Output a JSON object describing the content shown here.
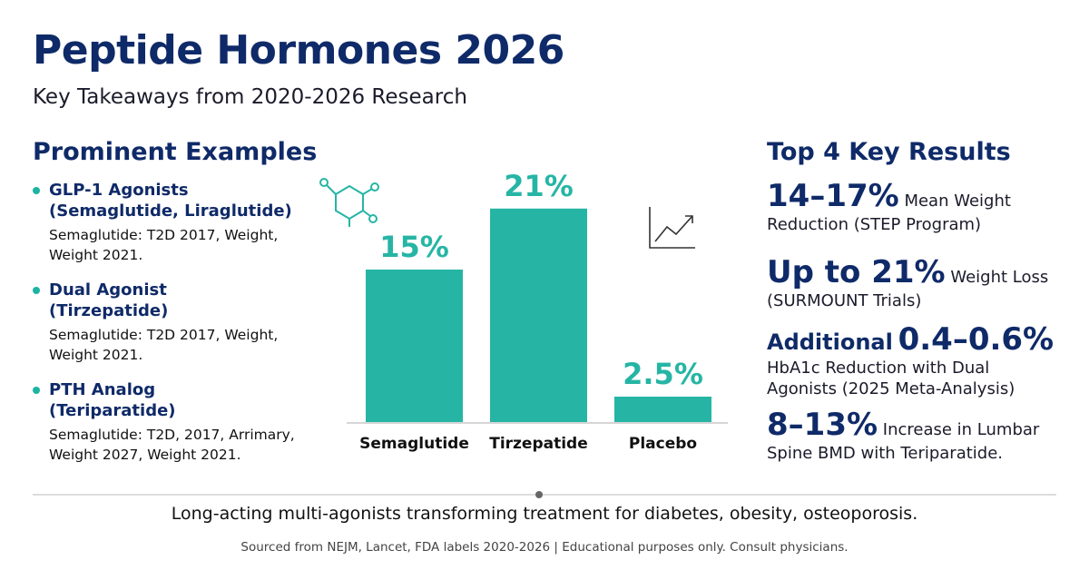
{
  "header": {
    "title": "Peptide Hormones 2026",
    "subtitle": "Key Takeaways from 2020-2026 Research"
  },
  "examples": {
    "heading": "Prominent Examples",
    "items": [
      {
        "name": [
          "GLP-1 Agonists",
          "(Semaglutide, Liraglutide)"
        ],
        "detail": "Semaglutide: T2D 2017, Weight, Weight 2021."
      },
      {
        "name": [
          "Dual Agonist",
          "(Tirzepatide)"
        ],
        "detail": "Semaglutide: T2D 2017, Weight, Weight 2021."
      },
      {
        "name": [
          "PTH Analog",
          "(Teriparatide)"
        ],
        "detail": "Semaglutide: T2D, 2017, Arrimary, Weight 2027, Weight 2021."
      }
    ]
  },
  "chart_data": {
    "type": "bar",
    "categories": [
      "Semaglutide",
      "Tirzepatide",
      "Placebo"
    ],
    "values": [
      15,
      21,
      2.5
    ],
    "value_labels": [
      "15%",
      "21%",
      "2.5%"
    ],
    "color": "#26b5a5"
  },
  "results": {
    "heading": "Top 4 Key Results",
    "items": [
      {
        "highlight": "14–17%",
        "text": "Mean Weight Reduction (STEP Program)"
      },
      {
        "highlight": "Up to 21%",
        "text": "Weight Loss (SURMOUNT Trials)"
      },
      {
        "prefix": "Additional",
        "highlight": "0.4–0.6%",
        "text": "HbA1c Reduction with Dual Agonists (2025 Meta-Analysis)"
      },
      {
        "highlight": "8–13%",
        "text": "Increase in Lumbar Spine BMD with Teriparatide."
      }
    ]
  },
  "footer": {
    "tagline": "Long-acting multi-agonists transforming treatment for diabetes, obesity, osteoporosis.",
    "source": "Sourced from NEJM, Lancet, FDA labels 2020-2026 | Educational purposes only. Consult physicians."
  }
}
